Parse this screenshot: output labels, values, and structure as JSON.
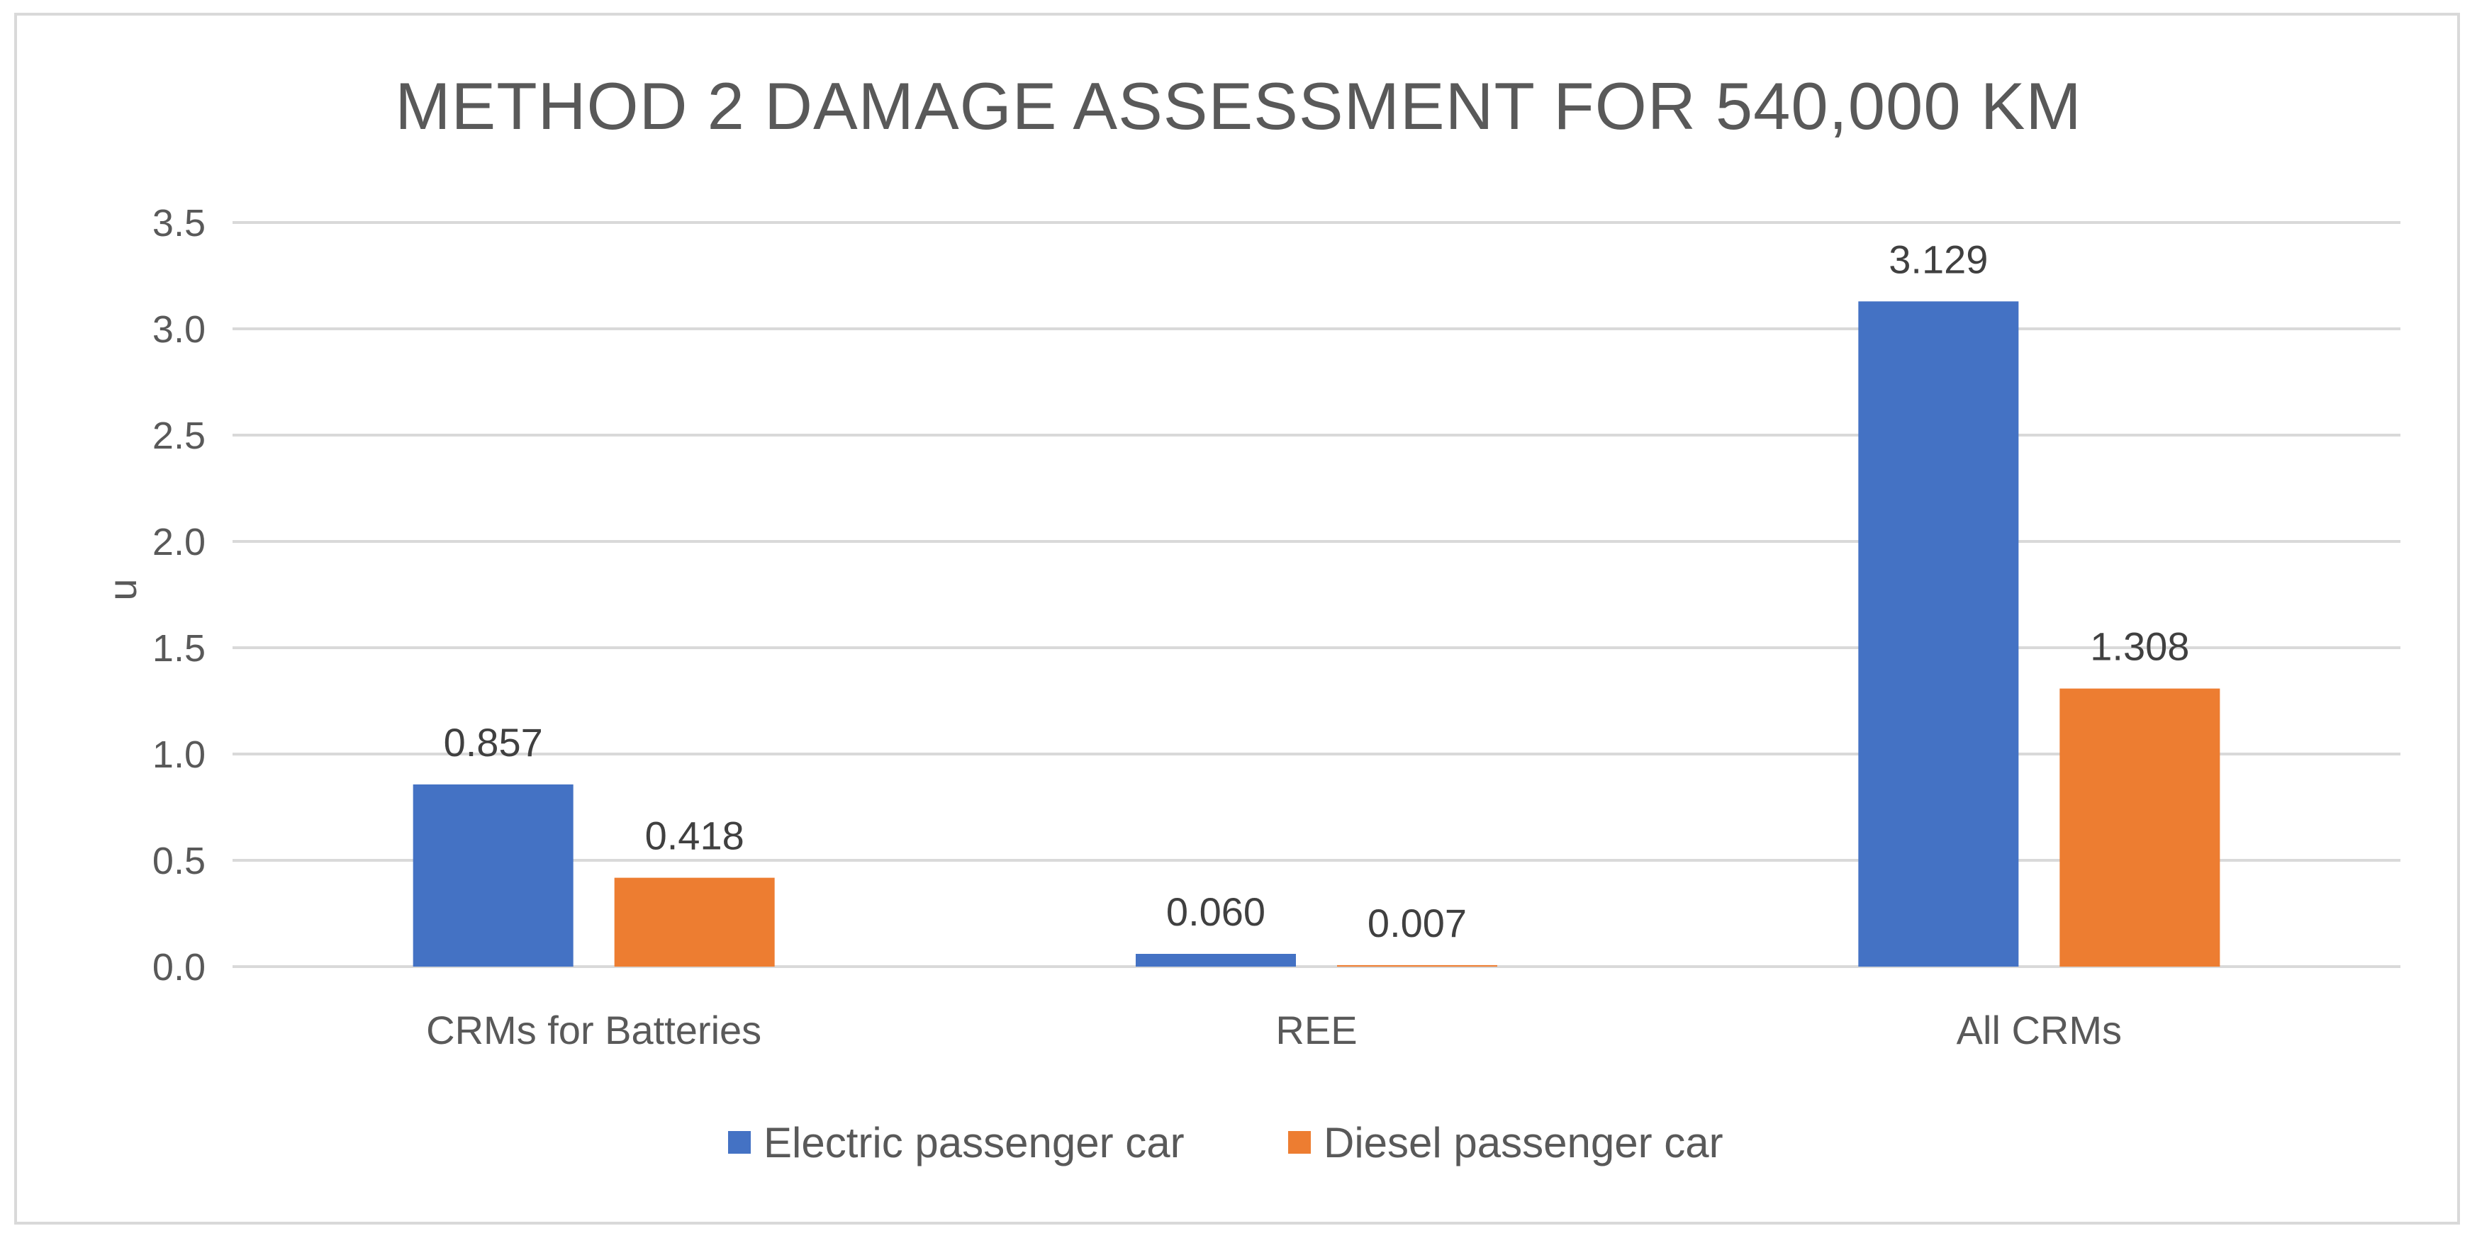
{
  "chart_data": {
    "type": "bar",
    "title": "METHOD 2 DAMAGE ASSESSMENT FOR 540,000 KM",
    "xlabel": "",
    "ylabel": "u",
    "ylim": [
      0,
      3.5
    ],
    "yticks": [
      "0.0",
      "0.5",
      "1.0",
      "1.5",
      "2.0",
      "2.5",
      "3.0",
      "3.5"
    ],
    "categories": [
      "CRMs for Batteries",
      "REE",
      "All CRMs"
    ],
    "series": [
      {
        "name": "Electric passenger car",
        "color": "#4472c4",
        "values": [
          0.857,
          0.06,
          3.129
        ],
        "labels": [
          "0.857",
          "0.060",
          "3.129"
        ]
      },
      {
        "name": "Diesel passenger car",
        "color": "#ed7d31",
        "values": [
          0.418,
          0.007,
          1.308
        ],
        "labels": [
          "0.418",
          "0.007",
          "1.308"
        ]
      }
    ],
    "grid": true,
    "legend_position": "bottom"
  }
}
